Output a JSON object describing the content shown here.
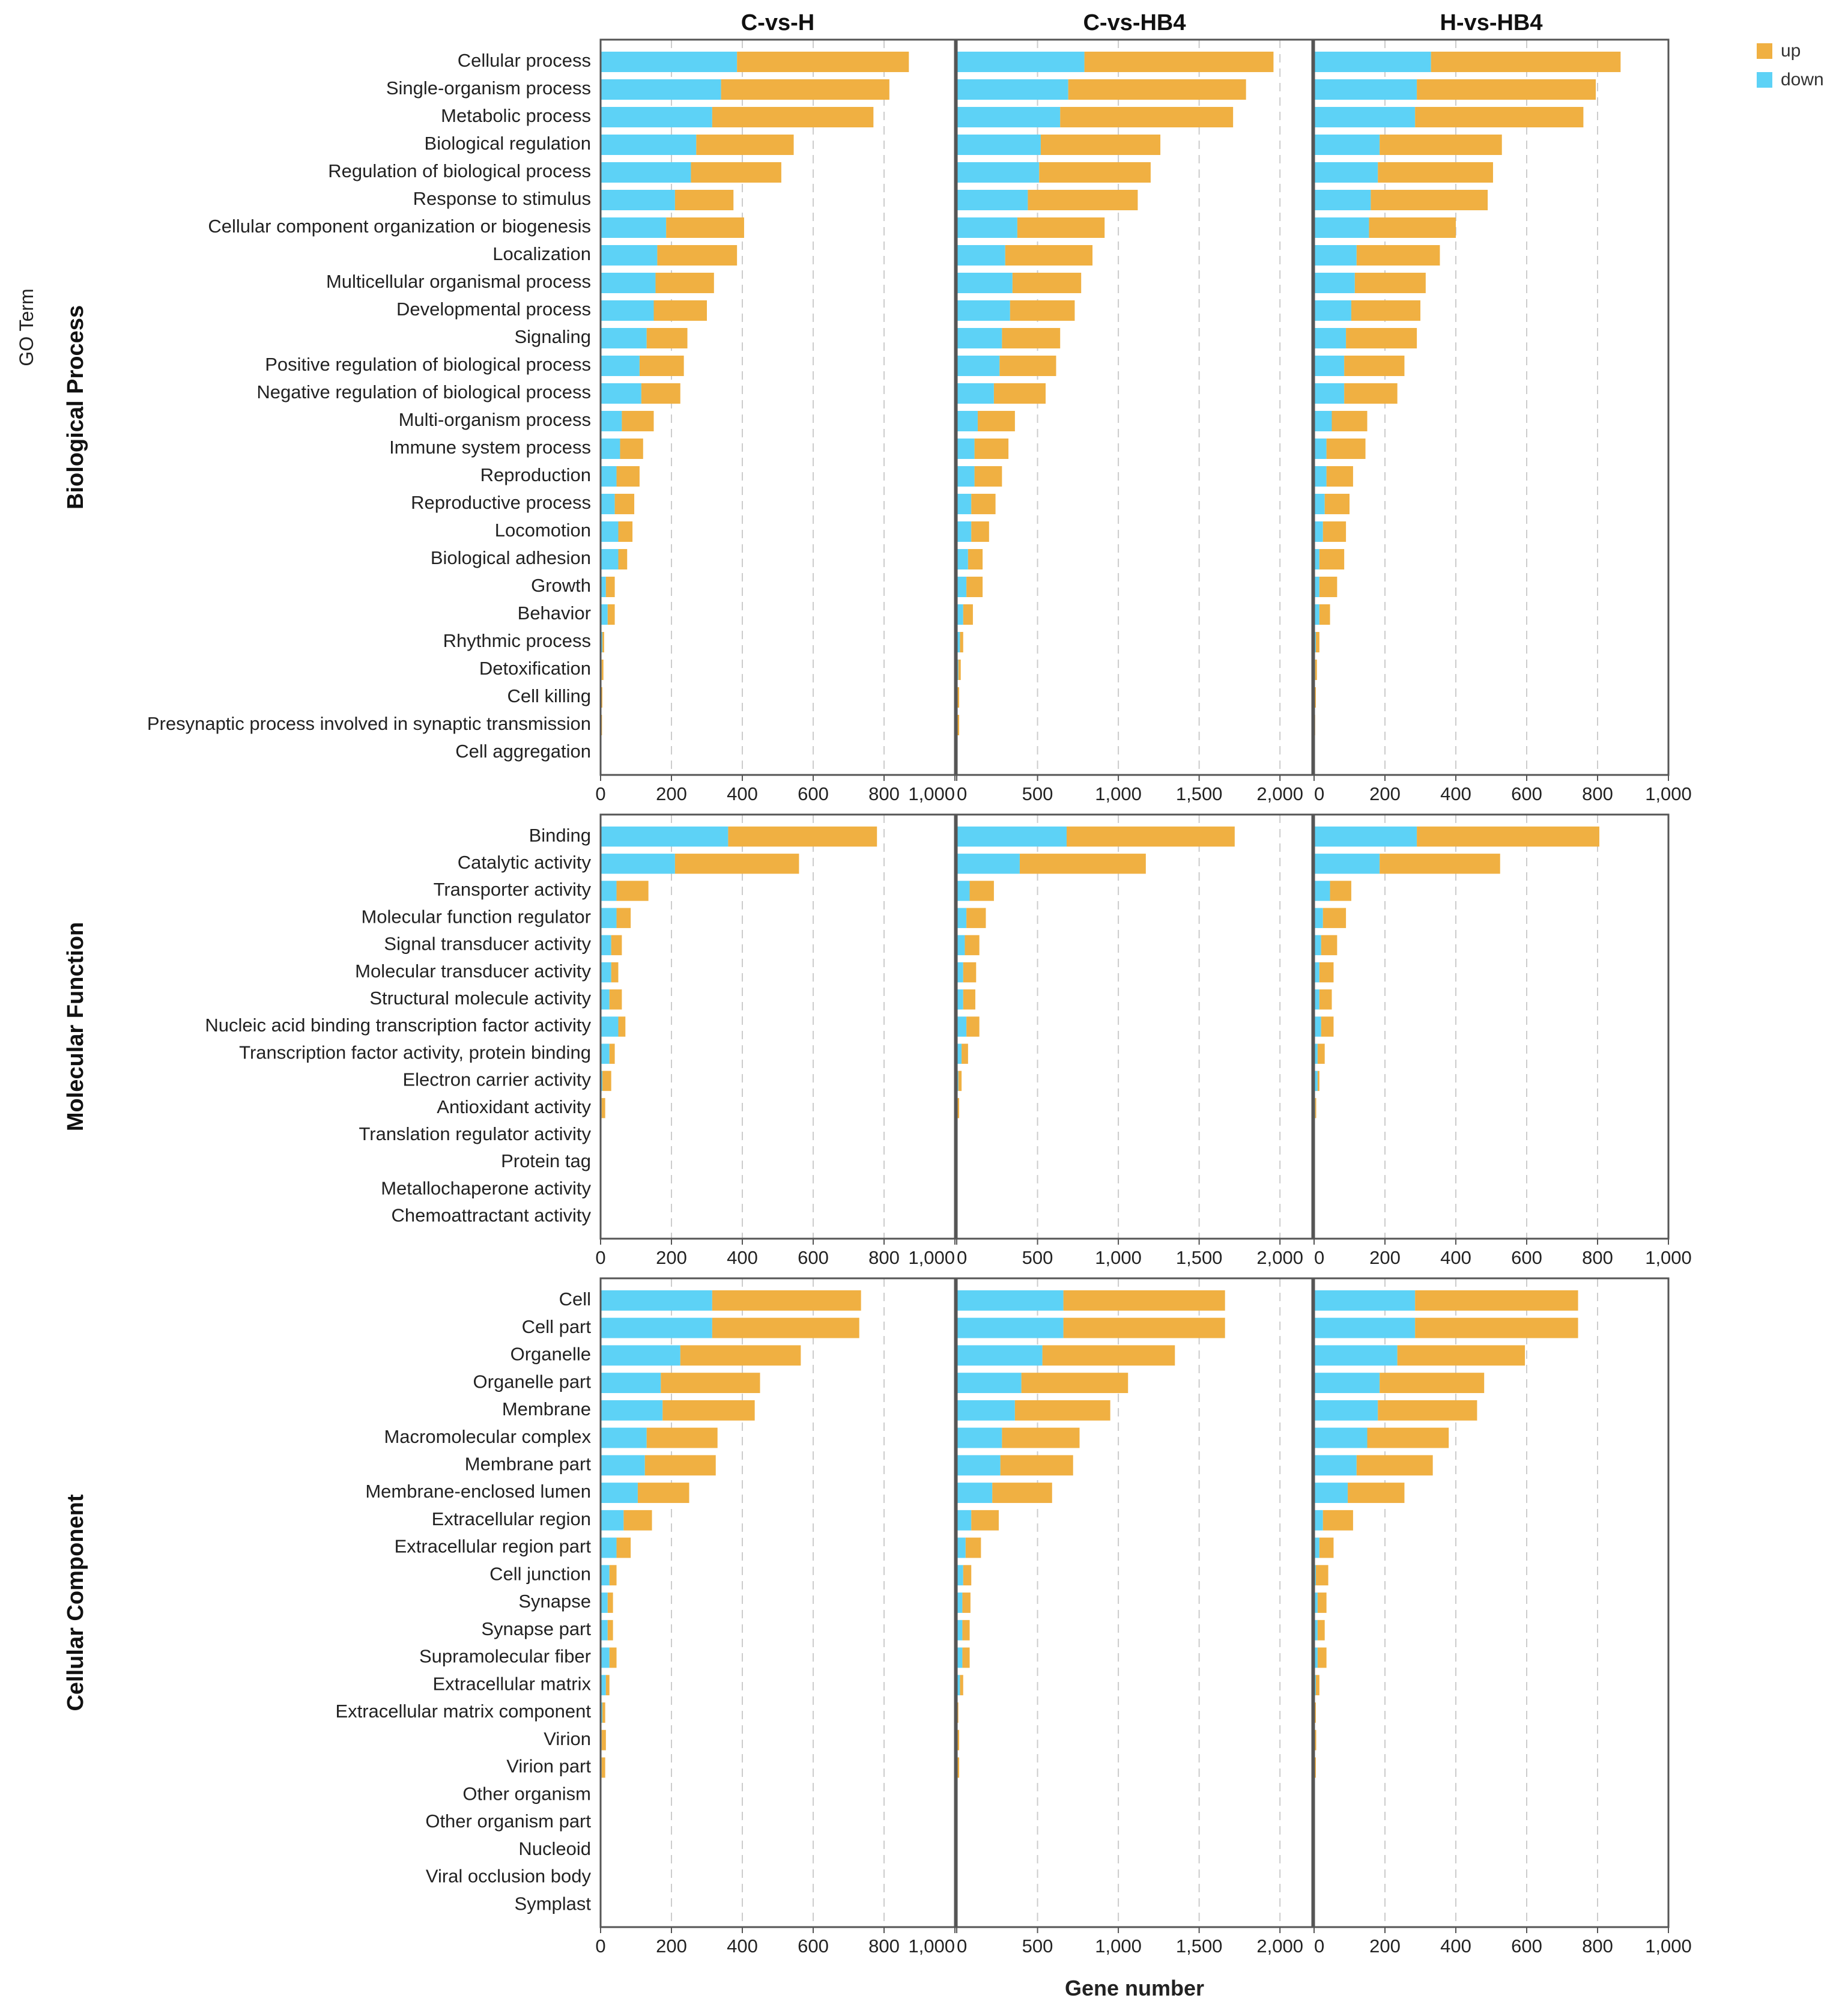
{
  "chart_data": {
    "type": "bar",
    "stacked": true,
    "orientation": "horizontal",
    "ylabel": "GO Term",
    "xlabel": "Gene number",
    "colors": {
      "up": "#f0b042",
      "down": "#5dd2f6"
    },
    "legend": {
      "position": "top-right",
      "entries": [
        "up",
        "down"
      ]
    },
    "columns": [
      {
        "title": "C-vs-H",
        "xlim": [
          0,
          1000
        ],
        "ticks": [
          0,
          200,
          400,
          600,
          800,
          1000
        ],
        "tick_labels": [
          "0",
          "200",
          "400",
          "600",
          "800",
          "1,000"
        ]
      },
      {
        "title": "C-vs-HB4",
        "xlim": [
          0,
          2200
        ],
        "ticks": [
          0,
          500,
          1000,
          1500,
          2000
        ],
        "tick_labels": [
          "0",
          "500",
          "1,000",
          "1,500",
          "2,000"
        ]
      },
      {
        "title": "H-vs-HB4",
        "xlim": [
          0,
          1000
        ],
        "ticks": [
          0,
          200,
          400,
          600,
          800,
          1000
        ],
        "tick_labels": [
          "0",
          "200",
          "400",
          "600",
          "800",
          "1,000"
        ]
      }
    ],
    "groups": [
      {
        "title": "Biological Process",
        "categories": [
          "Cellular process",
          "Single-organism process",
          "Metabolic process",
          "Biological regulation",
          "Regulation of biological process",
          "Response to stimulus",
          "Cellular component organization or biogenesis",
          "Localization",
          "Multicellular organismal process",
          "Developmental process",
          "Signaling",
          "Positive regulation of biological process",
          "Negative regulation of biological process",
          "Multi-organism process",
          "Immune system process",
          "Reproduction",
          "Reproductive process",
          "Locomotion",
          "Biological adhesion",
          "Growth",
          "Behavior",
          "Rhythmic process",
          "Detoxification",
          "Cell killing",
          "Presynaptic process involved in synaptic transmission",
          "Cell aggregation"
        ],
        "series": [
          {
            "comparison": "C-vs-H",
            "down": [
              385,
              340,
              315,
              270,
              255,
              210,
              185,
              160,
              155,
              150,
              130,
              110,
              115,
              60,
              55,
              45,
              40,
              50,
              50,
              15,
              20,
              5,
              3,
              2,
              2,
              1
            ],
            "up": [
              485,
              475,
              455,
              275,
              255,
              165,
              220,
              225,
              165,
              150,
              115,
              125,
              110,
              90,
              65,
              65,
              55,
              40,
              25,
              25,
              20,
              5,
              5,
              3,
              2,
              1
            ]
          },
          {
            "comparison": "C-vs-HB4",
            "down": [
              790,
              690,
              640,
              520,
              510,
              440,
              375,
              300,
              345,
              330,
              280,
              265,
              230,
              130,
              110,
              110,
              90,
              90,
              70,
              60,
              40,
              20,
              10,
              5,
              5,
              1
            ],
            "up": [
              1170,
              1100,
              1070,
              740,
              690,
              680,
              540,
              540,
              425,
              400,
              360,
              350,
              320,
              230,
              210,
              170,
              150,
              110,
              90,
              100,
              60,
              20,
              15,
              10,
              10,
              1
            ]
          },
          {
            "comparison": "H-vs-HB4",
            "down": [
              330,
              290,
              285,
              185,
              180,
              160,
              155,
              120,
              115,
              105,
              90,
              85,
              85,
              50,
              35,
              35,
              30,
              25,
              15,
              15,
              15,
              5,
              3,
              2,
              1,
              1
            ],
            "up": [
              535,
              505,
              475,
              345,
              325,
              330,
              245,
              235,
              200,
              195,
              200,
              170,
              150,
              100,
              110,
              75,
              70,
              65,
              70,
              50,
              30,
              10,
              5,
              3,
              2,
              1
            ]
          }
        ]
      },
      {
        "title": "Molecular Function",
        "categories": [
          "Binding",
          "Catalytic activity",
          "Transporter activity",
          "Molecular function regulator",
          "Signal transducer activity",
          "Molecular transducer activity",
          "Structural molecule activity",
          "Nucleic acid binding transcription factor activity",
          "Transcription factor activity, protein binding",
          "Electron carrier activity",
          "Antioxidant activity",
          "Translation regulator activity",
          "Protein tag",
          "Metallochaperone activity",
          "Chemoattractant activity"
        ],
        "series": [
          {
            "comparison": "C-vs-H",
            "down": [
              360,
              210,
              45,
              45,
              30,
              30,
              25,
              50,
              25,
              5,
              3,
              1,
              0,
              0,
              0
            ],
            "up": [
              420,
              350,
              90,
              40,
              30,
              20,
              35,
              20,
              15,
              25,
              10,
              1,
              1,
              1,
              1
            ]
          },
          {
            "comparison": "C-vs-HB4",
            "down": [
              680,
              390,
              80,
              60,
              50,
              40,
              40,
              60,
              30,
              10,
              5,
              2,
              1,
              0,
              0
            ],
            "up": [
              1040,
              780,
              150,
              120,
              90,
              80,
              75,
              80,
              40,
              20,
              10,
              3,
              1,
              1,
              1
            ]
          },
          {
            "comparison": "H-vs-HB4",
            "down": [
              290,
              185,
              45,
              25,
              20,
              15,
              15,
              20,
              10,
              10,
              3,
              1,
              0,
              0,
              0
            ],
            "up": [
              515,
              340,
              60,
              65,
              45,
              40,
              35,
              35,
              20,
              5,
              3,
              1,
              1,
              1,
              1
            ]
          }
        ]
      },
      {
        "title": "Cellular Component",
        "categories": [
          "Cell",
          "Cell part",
          "Organelle",
          "Organelle part",
          "Membrane",
          "Macromolecular complex",
          "Membrane part",
          "Membrane-enclosed lumen",
          "Extracellular region",
          "Extracellular region part",
          "Cell junction",
          "Synapse",
          "Synapse part",
          "Supramolecular fiber",
          "Extracellular matrix",
          "Extracellular matrix component",
          "Virion",
          "Virion part",
          "Other organism",
          "Other organism part",
          "Nucleoid",
          "Viral occlusion body",
          "Symplast"
        ],
        "series": [
          {
            "comparison": "C-vs-H",
            "down": [
              315,
              315,
              225,
              170,
              175,
              130,
              125,
              105,
              65,
              45,
              25,
              20,
              20,
              25,
              15,
              5,
              3,
              3,
              1,
              1,
              1,
              1,
              1
            ],
            "up": [
              420,
              415,
              340,
              280,
              260,
              200,
              200,
              145,
              80,
              40,
              20,
              15,
              15,
              20,
              10,
              8,
              12,
              10,
              1,
              1,
              1,
              1,
              1
            ]
          },
          {
            "comparison": "C-vs-HB4",
            "down": [
              660,
              660,
              530,
              400,
              360,
              280,
              270,
              220,
              90,
              55,
              40,
              35,
              35,
              35,
              20,
              5,
              5,
              5,
              1,
              1,
              1,
              1,
              1
            ],
            "up": [
              1000,
              1000,
              820,
              660,
              590,
              480,
              450,
              370,
              170,
              95,
              50,
              50,
              45,
              45,
              20,
              5,
              10,
              10,
              1,
              1,
              1,
              1,
              1
            ]
          },
          {
            "comparison": "H-vs-HB4",
            "down": [
              285,
              285,
              235,
              185,
              180,
              150,
              120,
              95,
              25,
              15,
              5,
              10,
              10,
              10,
              5,
              2,
              2,
              2,
              1,
              1,
              1,
              1,
              1
            ],
            "up": [
              460,
              460,
              360,
              295,
              280,
              230,
              215,
              160,
              85,
              40,
              35,
              25,
              20,
              25,
              10,
              3,
              4,
              3,
              1,
              1,
              1,
              1,
              1
            ]
          }
        ]
      }
    ]
  }
}
